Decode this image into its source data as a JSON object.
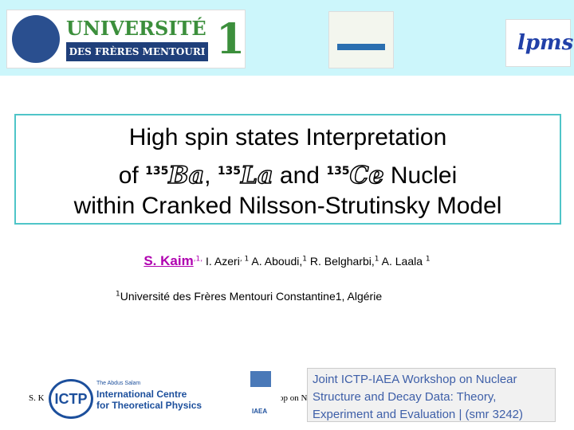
{
  "header": {
    "university": {
      "name": "UNIVERSITÉ",
      "subtitle": "DES FRÈRES MENTOURI",
      "number": "1"
    },
    "lab": "lpms"
  },
  "title": {
    "line1": "High spin states Interpretation",
    "line2": {
      "pre": "of ",
      "nuclei": [
        {
          "mass": "135",
          "symbol": "Ba"
        },
        {
          "mass": "135",
          "symbol": "La"
        },
        {
          "mass": "135",
          "symbol": "Ce"
        }
      ],
      "sep1": ", ",
      "sep2": " and ",
      "post": " Nuclei"
    },
    "line3": "within Cranked Nilsson-Strutinsky Model"
  },
  "authors": [
    {
      "name": "S. Kaim",
      "sup": ",1,"
    },
    {
      "name": "I. Azeri",
      "sup": ", 1"
    },
    {
      "name": "A. Aboudi,",
      "sup": "1"
    },
    {
      "name": "R. Belgharbi,",
      "sup": "1"
    },
    {
      "name": "A. Laala",
      "sup": "1"
    }
  ],
  "affiliation": {
    "sup": "1",
    "text": "Université des Frères Mentouri Constantine1, Algérie"
  },
  "footer": {
    "left": "S. K",
    "right": "op on N",
    "ictp": {
      "mark": "ICTP",
      "line1": "The Abdus Salam",
      "line2": "International Centre",
      "line3": "for Theoretical Physics"
    },
    "iaea": "IAEA",
    "workshop": "Joint ICTP-IAEA Workshop on Nuclear Structure and Decay Data: Theory, Experiment and Evaluation | (smr 3242)"
  }
}
